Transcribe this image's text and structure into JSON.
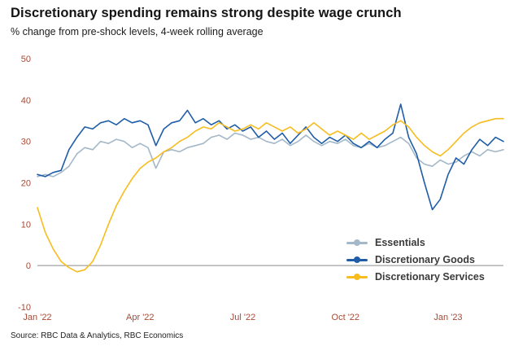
{
  "header": {
    "title": "Discretionary spending remains strong despite wage crunch",
    "subtitle": "% change from pre-shock levels, 4-week rolling average"
  },
  "source": "Source: RBC Data & Analytics, RBC Economics",
  "colors": {
    "axis_label": "#a84a35",
    "zero_line": "#8c8c8c",
    "essentials": "#a3b8c8",
    "discretionary_goods": "#1f5da8",
    "discretionary_services": "#f7bd1e"
  },
  "chart_data": {
    "type": "line",
    "title": "Discretionary spending remains strong despite wage crunch",
    "subtitle": "% change from pre-shock levels, 4-week rolling average",
    "xlabel": "",
    "ylabel": "% change from pre-shock levels",
    "ylim": [
      -10,
      50
    ],
    "y_ticks": [
      50,
      40,
      30,
      20,
      10,
      0,
      -10
    ],
    "grid": false,
    "legend_position": "inside-lower-right",
    "x_unit": "weeks since Jan 2022",
    "x_labels": [
      {
        "label": "Jan '22",
        "week": 0
      },
      {
        "label": "Apr '22",
        "week": 13
      },
      {
        "label": "Jul '22",
        "week": 26
      },
      {
        "label": "Oct '22",
        "week": 39
      },
      {
        "label": "Jan '23",
        "week": 52
      }
    ],
    "series": [
      {
        "name": "Essentials",
        "color": "#a3b8c8",
        "values": [
          21.5,
          22,
          21.5,
          22.5,
          24,
          27,
          28.5,
          28,
          30,
          29.5,
          30.5,
          30,
          28.5,
          29.5,
          28.5,
          23.5,
          27.5,
          28,
          27.5,
          28.5,
          29,
          29.5,
          31,
          31.5,
          30.5,
          32,
          31.5,
          30.5,
          31,
          30,
          29.5,
          30.5,
          29,
          30,
          31.5,
          30,
          29,
          30,
          29.5,
          30.5,
          29,
          28.5,
          29.5,
          28.5,
          29,
          30,
          31,
          29.5,
          26,
          24.5,
          24,
          25.5,
          24.5,
          25,
          26.5,
          27.5,
          26.5,
          28,
          27.5,
          28
        ]
      },
      {
        "name": "Discretionary Goods",
        "color": "#1f5da8",
        "values": [
          22,
          21.5,
          22.5,
          23,
          28,
          31,
          33.5,
          33,
          34.5,
          35,
          34,
          35.5,
          34.5,
          35,
          34,
          29,
          33,
          34.5,
          35,
          37.5,
          34.5,
          35.5,
          34,
          35,
          33,
          34,
          32.5,
          33.5,
          31,
          32.5,
          30.5,
          32,
          29.5,
          31.5,
          33.5,
          31,
          29.5,
          31,
          30,
          31.5,
          29.5,
          28.5,
          30,
          28.5,
          30.5,
          32,
          39,
          31,
          27,
          20,
          13.5,
          16,
          22,
          26,
          24.5,
          28,
          30.5,
          29,
          31,
          30
        ]
      },
      {
        "name": "Discretionary Services",
        "color": "#f7bd1e",
        "values": [
          14,
          8,
          4,
          1,
          -0.5,
          -1.5,
          -1,
          1,
          5,
          10,
          14.5,
          18,
          21,
          23.5,
          25,
          26,
          27.5,
          28.5,
          30,
          31,
          32.5,
          33.5,
          33,
          34.5,
          33.5,
          32.5,
          33,
          34,
          33,
          34.5,
          33.5,
          32.5,
          33.5,
          32,
          33,
          34.5,
          33,
          31.5,
          32.5,
          31.5,
          30.5,
          32,
          30.5,
          31.5,
          32.5,
          34,
          35,
          33.5,
          31,
          29,
          27.5,
          26.5,
          28,
          30,
          32,
          33.5,
          34.5,
          35,
          35.5,
          35.5
        ]
      }
    ]
  }
}
